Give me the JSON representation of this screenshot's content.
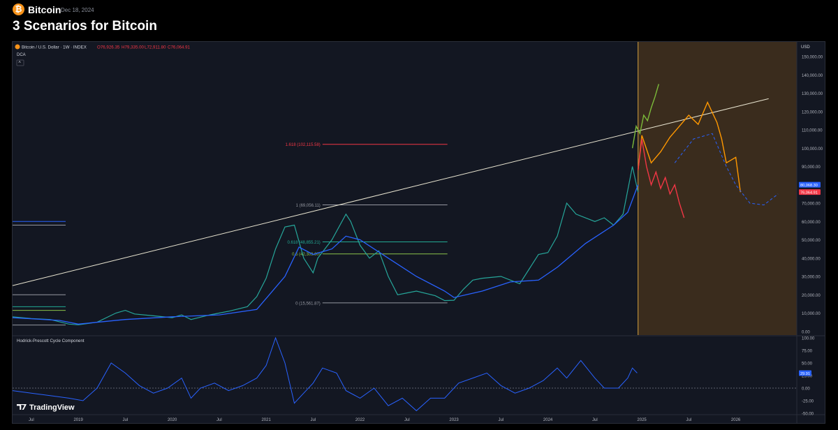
{
  "header": {
    "channel": "Bitcoin",
    "date": "Dec 18, 2024",
    "title": "3 Scenarios for Bitcoin"
  },
  "chart_data": [
    {
      "type": "line",
      "symbol_line": {
        "name": "Bitcoin / U.S. Dollar · 1W · INDEX",
        "o": "O76,926.35",
        "h": "H79,335.00",
        "l": "L72,911.80",
        "c": "C76,064.91"
      },
      "indicator_label": "DCA",
      "currency": "USD",
      "y_ticks": [
        0,
        10000,
        20000,
        30000,
        40000,
        50000,
        60000,
        70000,
        80000,
        90000,
        100000,
        110000,
        120000,
        130000,
        140000,
        150000
      ],
      "y_tick_labels": [
        "0.00",
        "10,000.00",
        "20,000.00",
        "30,000.00",
        "40,000.00",
        "50,000.00",
        "60,000.00",
        "70,000.00",
        "80,000.00",
        "90,000.00",
        "100,000.00",
        "110,000.00",
        "120,000.00",
        "130,000.00",
        "140,000.00",
        "150,000.00"
      ],
      "ylim": [
        -2000,
        158000
      ],
      "x_ticks": [
        {
          "t": 2018.5,
          "label": "Jul"
        },
        {
          "t": 2019.0,
          "label": "2019"
        },
        {
          "t": 2019.5,
          "label": "Jul"
        },
        {
          "t": 2020.0,
          "label": "2020"
        },
        {
          "t": 2020.5,
          "label": "Jul"
        },
        {
          "t": 2021.0,
          "label": "2021"
        },
        {
          "t": 2021.5,
          "label": "Jul"
        },
        {
          "t": 2022.0,
          "label": "2022"
        },
        {
          "t": 2022.5,
          "label": "Jul"
        },
        {
          "t": 2023.0,
          "label": "2023"
        },
        {
          "t": 2023.5,
          "label": "Jul"
        },
        {
          "t": 2024.0,
          "label": "2024"
        },
        {
          "t": 2024.5,
          "label": "Jul"
        },
        {
          "t": 2025.0,
          "label": "2025"
        },
        {
          "t": 2025.5,
          "label": "Jul"
        },
        {
          "t": 2026.0,
          "label": "2026"
        }
      ],
      "xlim": [
        2018.3,
        2026.65
      ],
      "price": {
        "t": [
          2018.3,
          2018.5,
          2018.7,
          2018.9,
          2019.0,
          2019.2,
          2019.4,
          2019.5,
          2019.6,
          2019.8,
          2020.0,
          2020.1,
          2020.2,
          2020.4,
          2020.6,
          2020.8,
          2020.9,
          2021.0,
          2021.1,
          2021.2,
          2021.3,
          2021.4,
          2021.5,
          2021.55,
          2021.7,
          2021.85,
          2021.9,
          2022.0,
          2022.1,
          2022.2,
          2022.3,
          2022.4,
          2022.5,
          2022.6,
          2022.8,
          2022.9,
          2023.0,
          2023.1,
          2023.2,
          2023.3,
          2023.5,
          2023.7,
          2023.8,
          2023.9,
          2024.0,
          2024.1,
          2024.2,
          2024.3,
          2024.5,
          2024.6,
          2024.7,
          2024.8,
          2024.9,
          2024.96
        ],
        "v": [
          8000,
          7000,
          6500,
          4000,
          3600,
          5000,
          10000,
          11500,
          9500,
          8500,
          7500,
          9000,
          6500,
          9000,
          11000,
          13500,
          19000,
          29000,
          45000,
          57000,
          58000,
          40000,
          32000,
          40000,
          50000,
          64000,
          60000,
          47000,
          40000,
          44000,
          30000,
          20000,
          21000,
          22000,
          19500,
          16800,
          17000,
          23000,
          28000,
          29000,
          30000,
          26000,
          34000,
          42000,
          43000,
          52000,
          70000,
          64000,
          60000,
          62000,
          58000,
          64000,
          90000,
          76000
        ]
      },
      "dca": {
        "t": [
          2018.3,
          2018.8,
          2019.0,
          2019.5,
          2020.0,
          2020.5,
          2020.9,
          2021.2,
          2021.35,
          2021.5,
          2021.7,
          2021.85,
          2022.0,
          2022.3,
          2022.6,
          2022.9,
          2023.0,
          2023.3,
          2023.6,
          2023.9,
          2024.1,
          2024.4,
          2024.7,
          2024.85,
          2024.96
        ],
        "v": [
          7500,
          6000,
          4000,
          6500,
          8000,
          9000,
          12000,
          30000,
          46000,
          42000,
          45000,
          52000,
          50000,
          40000,
          30000,
          22000,
          18500,
          22000,
          27000,
          28000,
          35000,
          48000,
          58000,
          65000,
          80068
        ]
      },
      "hp_trendline": {
        "t": [
          2018.3,
          2026.35
        ],
        "v": [
          25000,
          127000
        ]
      },
      "scenarios": [
        {
          "name": "",
          "color": "#7cbb3a",
          "t": [
            2024.9,
            2024.94,
            2024.98,
            2025.02,
            2025.06,
            2025.1,
            2025.14,
            2025.18
          ],
          "v": [
            100000,
            112000,
            108000,
            118000,
            115000,
            122000,
            128000,
            135000
          ]
        },
        {
          "name": "",
          "color": "#ff9800",
          "t": [
            2024.96,
            2025.0,
            2025.1,
            2025.2,
            2025.3,
            2025.4,
            2025.5,
            2025.6,
            2025.7,
            2025.8,
            2025.85,
            2025.9,
            2026.0,
            2026.05
          ],
          "v": [
            88000,
            107000,
            92000,
            98000,
            106000,
            112000,
            118000,
            113000,
            125000,
            114000,
            105000,
            92000,
            95000,
            76000
          ]
        },
        {
          "name": "",
          "color": "#f23645",
          "t": [
            2024.96,
            2025.0,
            2025.05,
            2025.1,
            2025.15,
            2025.2,
            2025.25,
            2025.3,
            2025.35,
            2025.4,
            2025.45
          ],
          "v": [
            88000,
            105000,
            90000,
            80000,
            87000,
            78000,
            84000,
            75000,
            80000,
            70000,
            62000
          ]
        }
      ],
      "projection": {
        "t": [
          2025.35,
          2025.55,
          2025.75,
          2025.9,
          2026.0,
          2026.15,
          2026.3,
          2026.45
        ],
        "v": [
          92000,
          105000,
          108000,
          90000,
          80000,
          70000,
          69000,
          75000
        ]
      },
      "fib_levels": [
        {
          "label": "1.618 (102,115.58)",
          "value": 102115.58,
          "color": "#f23645"
        },
        {
          "label": "1 (69,056.11)",
          "value": 69056.11,
          "color": "#9598a1"
        },
        {
          "label": "0.618 (48,855.21)",
          "value": 48855.21,
          "color": "#22ab94"
        },
        {
          "label": "0.5 (42,309.00)",
          "value": 42309.0,
          "color": "#8bc34a"
        },
        {
          "label": "0 (15,561.87)",
          "value": 15561.87,
          "color": "#9598a1"
        }
      ],
      "fib_range": {
        "t1": 2021.6,
        "t2": 2022.93
      },
      "left_levels": [
        {
          "value": 60000,
          "color": "#2962ff"
        },
        {
          "value": 58000,
          "color": "#9598a1"
        },
        {
          "value": 20000,
          "color": "#9598a1"
        },
        {
          "value": 13500,
          "color": "#22ab94"
        },
        {
          "value": 11500,
          "color": "#8bc34a"
        },
        {
          "value": 3500,
          "color": "#9598a1"
        }
      ],
      "future_zone_start": 2024.96,
      "last_price_labels": [
        {
          "value": 80068.3,
          "label": "80,068.30",
          "color": "#2962ff"
        },
        {
          "value": 76064.91,
          "label": "76,064.91",
          "color": "#f23645"
        }
      ]
    },
    {
      "type": "line",
      "title": "Hodrick-Prescott Cycle Component",
      "y_ticks": [
        -50,
        -25,
        0,
        25,
        50,
        75,
        100
      ],
      "y_tick_labels": [
        "-50.00",
        "-25.00",
        "0.00",
        "25.00",
        "50.00",
        "75.00",
        "100.00"
      ],
      "ylim": [
        -50,
        100
      ],
      "last_value_label": "29.91",
      "cycle": {
        "t": [
          2018.3,
          2018.5,
          2018.7,
          2018.9,
          2019.05,
          2019.2,
          2019.35,
          2019.5,
          2019.65,
          2019.8,
          2019.95,
          2020.1,
          2020.2,
          2020.3,
          2020.45,
          2020.6,
          2020.75,
          2020.9,
          2021.0,
          2021.1,
          2021.2,
          2021.3,
          2021.4,
          2021.5,
          2021.6,
          2021.75,
          2021.85,
          2022.0,
          2022.15,
          2022.3,
          2022.45,
          2022.6,
          2022.75,
          2022.9,
          2023.05,
          2023.2,
          2023.35,
          2023.5,
          2023.65,
          2023.8,
          2023.95,
          2024.1,
          2024.2,
          2024.35,
          2024.5,
          2024.6,
          2024.75,
          2024.85,
          2024.9,
          2024.95
        ],
        "v": [
          -5,
          -10,
          -15,
          -20,
          -25,
          0,
          50,
          30,
          5,
          -10,
          0,
          20,
          -20,
          0,
          10,
          -5,
          5,
          20,
          45,
          100,
          50,
          -30,
          -10,
          10,
          40,
          30,
          -5,
          -20,
          0,
          -35,
          -20,
          -45,
          -20,
          -20,
          10,
          20,
          30,
          5,
          -10,
          0,
          15,
          40,
          20,
          55,
          20,
          0,
          0,
          20,
          40,
          30
        ]
      }
    }
  ],
  "footer": {
    "brand": "TradingView"
  }
}
